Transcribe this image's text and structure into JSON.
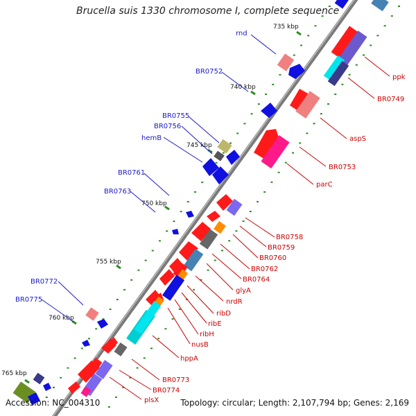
{
  "title": "Brucella suis 1330 chromosome I, complete sequence",
  "footer": {
    "accession": "Accession: NC_004310",
    "summary": "Topology: circular; Length: 2,107,794 bp; Genes: 2,169"
  },
  "colors": {
    "backbone": "#888888",
    "tick": "#2e8b22",
    "left_label": "#1a1acc",
    "right_label": "#cc0000"
  },
  "kbp_ticks": [
    "735 kbp",
    "740 kbp",
    "745 kbp",
    "750 kbp",
    "755 kbp",
    "760 kbp",
    "765 kbp"
  ],
  "left_labels": [
    "rnd",
    "BR0752",
    "BR0755",
    "BR0756",
    "hemB",
    "BR0761",
    "BR0763",
    "BR0772",
    "BR0775"
  ],
  "right_labels": [
    "ppk",
    "BR0749",
    "aspS",
    "BR0753",
    "parC",
    "BR0758",
    "BR0759",
    "BR0760",
    "BR0762",
    "BR0764",
    "glyA",
    "nrdR",
    "ribD",
    "ribE",
    "ribH",
    "nusB",
    "hppA",
    "BR0773",
    "BR0774",
    "plsX"
  ]
}
